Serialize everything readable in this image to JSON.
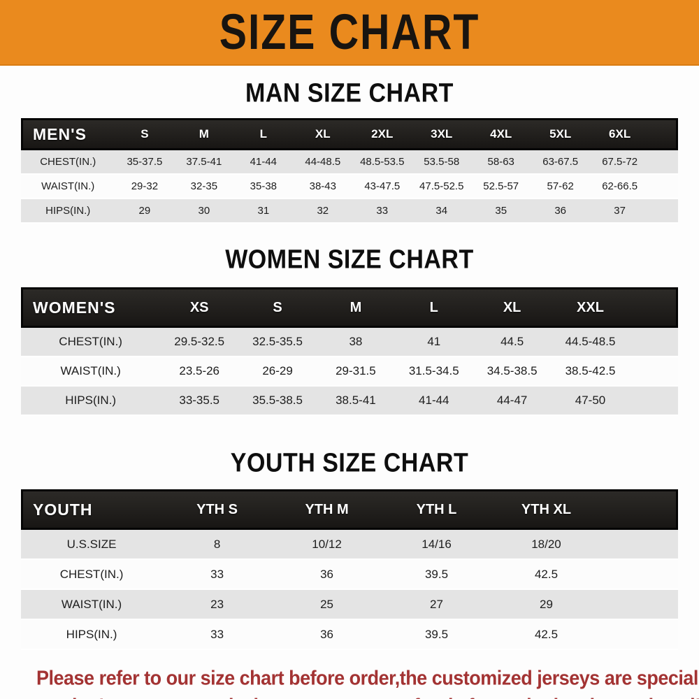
{
  "banner": {
    "title": "SIZE CHART"
  },
  "colors": {
    "banner_orange": "#ea8a1e",
    "header_bar_black": "#1e1c1a",
    "row_alt_gray": "#e4e4e4",
    "note_red": "#a33333"
  },
  "sections": [
    {
      "heading": "MAN SIZE CHART",
      "table": {
        "header": [
          "MEN'S",
          "S",
          "M",
          "L",
          "XL",
          "2XL",
          "3XL",
          "4XL",
          "5XL",
          "6XL"
        ],
        "rows": [
          [
            "CHEST(IN.)",
            "35-37.5",
            "37.5-41",
            "41-44",
            "44-48.5",
            "48.5-53.5",
            "53.5-58",
            "58-63",
            "63-67.5",
            "67.5-72"
          ],
          [
            "WAIST(IN.)",
            "29-32",
            "32-35",
            "35-38",
            "38-43",
            "43-47.5",
            "47.5-52.5",
            "52.5-57",
            "57-62",
            "62-66.5"
          ],
          [
            "HIPS(IN.)",
            "29",
            "30",
            "31",
            "32",
            "33",
            "34",
            "35",
            "36",
            "37"
          ]
        ]
      }
    },
    {
      "heading": "WOMEN SIZE CHART",
      "table": {
        "header": [
          "WOMEN'S",
          "XS",
          "S",
          "M",
          "L",
          "XL",
          "XXL"
        ],
        "rows": [
          [
            "CHEST(IN.)",
            "29.5-32.5",
            "32.5-35.5",
            "38",
            "41",
            "44.5",
            "44.5-48.5"
          ],
          [
            "WAIST(IN.)",
            "23.5-26",
            "26-29",
            "29-31.5",
            "31.5-34.5",
            "34.5-38.5",
            "38.5-42.5"
          ],
          [
            "HIPS(IN.)",
            "33-35.5",
            "35.5-38.5",
            "38.5-41",
            "41-44",
            "44-47",
            "47-50"
          ]
        ]
      }
    },
    {
      "heading": "YOUTH SIZE CHART",
      "table": {
        "header": [
          "YOUTH",
          "YTH S",
          "YTH M",
          "YTH L",
          "YTH XL"
        ],
        "rows": [
          [
            "U.S.SIZE",
            "8",
            "10/12",
            "14/16",
            "18/20"
          ],
          [
            "CHEST(IN.)",
            "33",
            "36",
            "39.5",
            "42.5"
          ],
          [
            "WAIST(IN.)",
            "23",
            "25",
            "27",
            "29"
          ],
          [
            "HIPS(IN.)",
            "33",
            "36",
            "39.5",
            "42.5"
          ]
        ]
      }
    }
  ],
  "footer": {
    "lines": [
      "Please refer to our size chart before order,the customized jerseys are special products,",
      "we don't accept cancel, change, teturn or refund after order has been placed!"
    ]
  }
}
